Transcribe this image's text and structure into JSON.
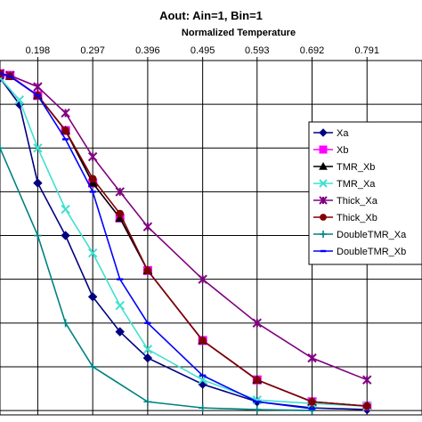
{
  "chart_data": {
    "type": "line",
    "title": "Aout: Ain=1, Bin=1",
    "xlabel": "Normalized Temperature",
    "ylabel": "",
    "x_tick_labels": [
      "0.198",
      "0.297",
      "0.396",
      "0.495",
      "0.593",
      "0.692",
      "0.791"
    ],
    "xlim": [
      0.13,
      0.89
    ],
    "ylim": [
      -0.005,
      0.4
    ],
    "grid": true,
    "legend_position": "right",
    "series": [
      {
        "name": "Xa",
        "color": "#000080",
        "marker": "diamond",
        "x": [
          0.099,
          0.13,
          0.165,
          0.198,
          0.248,
          0.297,
          0.346,
          0.396,
          0.495,
          0.593,
          0.692,
          0.791
        ],
        "values": [
          0.39,
          0.38,
          0.35,
          0.26,
          0.2,
          0.13,
          0.09,
          0.06,
          0.03,
          0.01,
          0.003,
          0.001
        ]
      },
      {
        "name": "Xb",
        "color": "#ff00ff",
        "marker": "square",
        "x": [
          0.13,
          0.148,
          0.198,
          0.248,
          0.297,
          0.346,
          0.396,
          0.495,
          0.593,
          0.692,
          0.791
        ],
        "values": [
          0.385,
          0.383,
          0.36,
          0.32,
          0.26,
          0.22,
          0.16,
          0.08,
          0.035,
          0.01,
          0.005
        ]
      },
      {
        "name": "TMR_Xb",
        "color": "#000000",
        "marker": "triangle",
        "x": [
          0.13,
          0.148,
          0.198,
          0.248,
          0.297,
          0.346,
          0.396,
          0.495,
          0.593,
          0.692,
          0.791
        ],
        "values": [
          0.385,
          0.382,
          0.36,
          0.32,
          0.26,
          0.22,
          0.16,
          0.08,
          0.035,
          0.01,
          0.005
        ]
      },
      {
        "name": "TMR_Xa",
        "color": "#40e0d0",
        "marker": "x",
        "x": [
          0.099,
          0.13,
          0.165,
          0.198,
          0.248,
          0.297,
          0.346,
          0.396,
          0.495,
          0.593,
          0.692,
          0.791
        ],
        "values": [
          0.39,
          0.38,
          0.355,
          0.3,
          0.23,
          0.18,
          0.12,
          0.07,
          0.035,
          0.012,
          0.008,
          0.005
        ]
      },
      {
        "name": "Thick_Xa",
        "color": "#800080",
        "marker": "star",
        "x": [
          0.13,
          0.148,
          0.198,
          0.248,
          0.297,
          0.346,
          0.396,
          0.495,
          0.593,
          0.692,
          0.791
        ],
        "values": [
          0.385,
          0.383,
          0.37,
          0.34,
          0.29,
          0.25,
          0.21,
          0.15,
          0.1,
          0.06,
          0.035
        ]
      },
      {
        "name": "Thick_Xb",
        "color": "#800000",
        "marker": "circle",
        "x": [
          0.13,
          0.148,
          0.198,
          0.248,
          0.297,
          0.346,
          0.396,
          0.495,
          0.593,
          0.692,
          0.791
        ],
        "values": [
          0.385,
          0.382,
          0.36,
          0.32,
          0.265,
          0.225,
          0.16,
          0.08,
          0.035,
          0.01,
          0.005
        ]
      },
      {
        "name": "DoubleTMR_Xa",
        "color": "#008080",
        "marker": "plus",
        "x": [
          0.099,
          0.13,
          0.198,
          0.248,
          0.297,
          0.396,
          0.495,
          0.593,
          0.692
        ],
        "values": [
          0.32,
          0.3,
          0.2,
          0.1,
          0.05,
          0.01,
          0.003,
          0.001,
          0.0
        ]
      },
      {
        "name": "DoubleTMR_Xb",
        "color": "#0000ff",
        "marker": "dash",
        "x": [
          0.13,
          0.148,
          0.198,
          0.248,
          0.297,
          0.346,
          0.396,
          0.495,
          0.593,
          0.692
        ],
        "values": [
          0.385,
          0.382,
          0.36,
          0.31,
          0.25,
          0.15,
          0.1,
          0.04,
          0.01,
          0.002
        ]
      }
    ]
  }
}
